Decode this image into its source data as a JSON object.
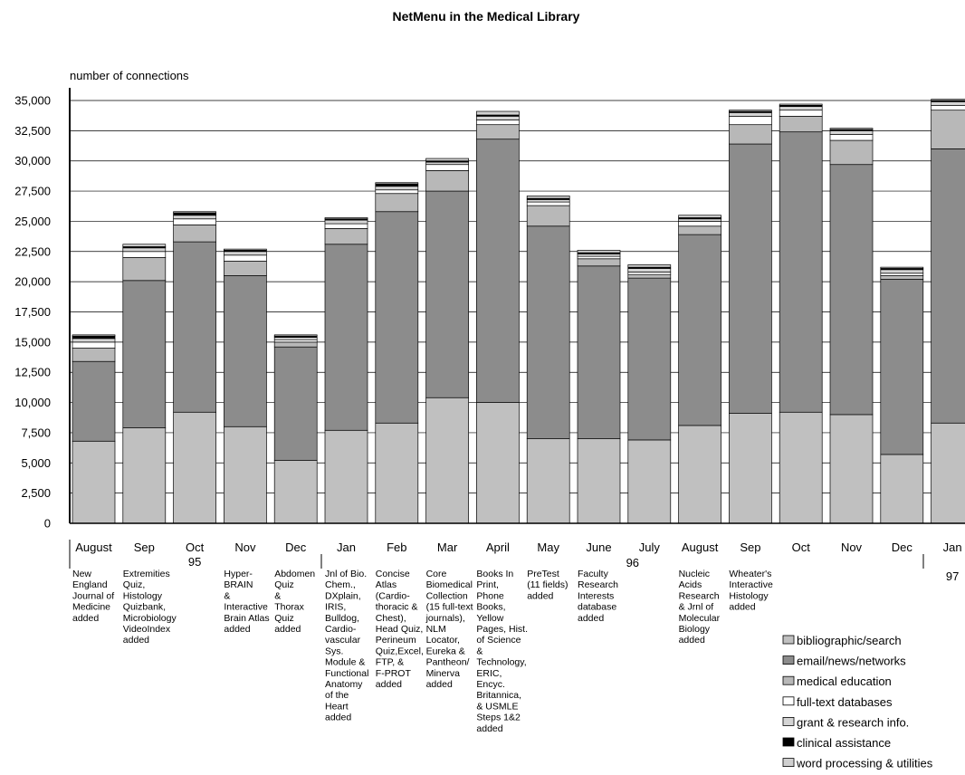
{
  "chart_data": {
    "type": "bar",
    "stacked": true,
    "title": "NetMenu in the Medical Library",
    "ylabel": "number of connections",
    "ylim": [
      0,
      35000
    ],
    "yticks": [
      0,
      2500,
      5000,
      7500,
      10000,
      12500,
      15000,
      17500,
      20000,
      22500,
      25000,
      27500,
      30000,
      32500,
      35000
    ],
    "ytick_labels": [
      "0",
      "2,500",
      "5,000",
      "7,500",
      "10,000",
      "12,500",
      "15,000",
      "17,500",
      "20,000",
      "22,500",
      "25,000",
      "27,500",
      "30,000",
      "32,500",
      "35,000"
    ],
    "grid": true,
    "categories": [
      "August",
      "Sep",
      "Oct",
      "Nov",
      "Dec",
      "Jan",
      "Feb",
      "Mar",
      "April",
      "May",
      "June",
      "July",
      "August",
      "Sep",
      "Oct",
      "Nov",
      "Dec",
      "Jan"
    ],
    "year_labels": [
      "95",
      "96",
      "97"
    ],
    "series": [
      {
        "name": "bibliographic/search",
        "color": "#c0c0c0",
        "values": [
          6800,
          7900,
          9200,
          8000,
          5200,
          7700,
          8300,
          10400,
          10000,
          7000,
          7000,
          6900,
          8100,
          9100,
          9200,
          9000,
          5700,
          8300
        ]
      },
      {
        "name": "email/news/networks",
        "color": "#8c8c8c",
        "values": [
          6600,
          12200,
          14100,
          12500,
          9400,
          15400,
          17500,
          17100,
          21800,
          17600,
          14300,
          13400,
          15800,
          22300,
          23200,
          20700,
          14500,
          22700
        ]
      },
      {
        "name": "medical education",
        "color": "#b8b8b8",
        "values": [
          1100,
          1900,
          1400,
          1200,
          400,
          1300,
          1500,
          1700,
          1200,
          1700,
          600,
          300,
          700,
          1600,
          1300,
          2000,
          300,
          3200
        ]
      },
      {
        "name": "full-text databases",
        "color": "#ffffff",
        "values": [
          500,
          500,
          500,
          500,
          200,
          400,
          300,
          500,
          400,
          300,
          200,
          200,
          400,
          700,
          500,
          500,
          200,
          400
        ]
      },
      {
        "name": "grant & research info.",
        "color": "#d4d4d4",
        "values": [
          300,
          300,
          300,
          300,
          200,
          300,
          300,
          200,
          300,
          200,
          200,
          300,
          200,
          300,
          300,
          300,
          300,
          300
        ]
      },
      {
        "name": "clinical assistance",
        "color": "#000000",
        "values": [
          200,
          100,
          200,
          100,
          100,
          100,
          200,
          100,
          100,
          100,
          100,
          100,
          100,
          100,
          100,
          100,
          100,
          100
        ]
      },
      {
        "name": "word processing & utilities",
        "color": "#d0d0d0",
        "values": [
          100,
          200,
          100,
          100,
          100,
          100,
          100,
          200,
          300,
          200,
          200,
          200,
          200,
          100,
          100,
          100,
          100,
          100
        ]
      }
    ],
    "annotations": [
      {
        "index": 0,
        "lines": [
          "New",
          "England",
          "Journal of",
          "Medicine",
          "added"
        ]
      },
      {
        "index": 1,
        "lines": [
          "Extremities",
          "Quiz,",
          "Histology",
          "Quizbank,",
          "Microbiology",
          "VideoIndex",
          "added"
        ]
      },
      {
        "index": 3,
        "lines": [
          "Hyper-",
          "BRAIN",
          "&",
          "Interactive",
          "Brain Atlas",
          "added"
        ]
      },
      {
        "index": 4,
        "lines": [
          "Abdomen",
          "Quiz",
          "&",
          "Thorax",
          "Quiz",
          "added"
        ]
      },
      {
        "index": 5,
        "lines": [
          "Jnl of Bio.",
          "Chem.,",
          "DXplain,",
          "IRIS,",
          "Bulldog,",
          "Cardio-",
          "vascular",
          "Sys.",
          "Module &",
          "Functional",
          "Anatomy",
          "of the",
          "Heart",
          "added"
        ]
      },
      {
        "index": 6,
        "lines": [
          "Concise",
          "Atlas",
          "(Cardio-",
          "thoracic &",
          "Chest),",
          "Head Quiz,",
          "Perineum",
          "Quiz,Excel,",
          "FTP, &",
          "F-PROT",
          "added"
        ]
      },
      {
        "index": 7,
        "lines": [
          "Core",
          "Biomedical",
          "Collection",
          "(15 full-text",
          "journals),",
          "NLM",
          "Locator,",
          "Eureka &",
          "Pantheon/",
          "Minerva",
          "added"
        ]
      },
      {
        "index": 8,
        "lines": [
          "Books In",
          "Print,",
          "Phone",
          "Books,",
          "Yellow",
          "Pages, Hist.",
          "of Science",
          "&",
          "Technology,",
          "ERIC,",
          "Encyc.",
          "Britannica,",
          "& USMLE",
          "Steps 1&2",
          "added"
        ]
      },
      {
        "index": 9,
        "lines": [
          "PreTest",
          "(11 fields)",
          "added"
        ]
      },
      {
        "index": 10,
        "lines": [
          "Faculty",
          "Research",
          "Interests",
          "database",
          "added"
        ]
      },
      {
        "index": 12,
        "lines": [
          "Nucleic",
          "Acids",
          "Research",
          "& Jrnl of",
          "Molecular",
          "Biology",
          "added"
        ]
      },
      {
        "index": 13,
        "lines": [
          "Wheater's",
          "Interactive",
          "Histology",
          "added"
        ]
      }
    ],
    "legend_position": "bottom-right"
  }
}
